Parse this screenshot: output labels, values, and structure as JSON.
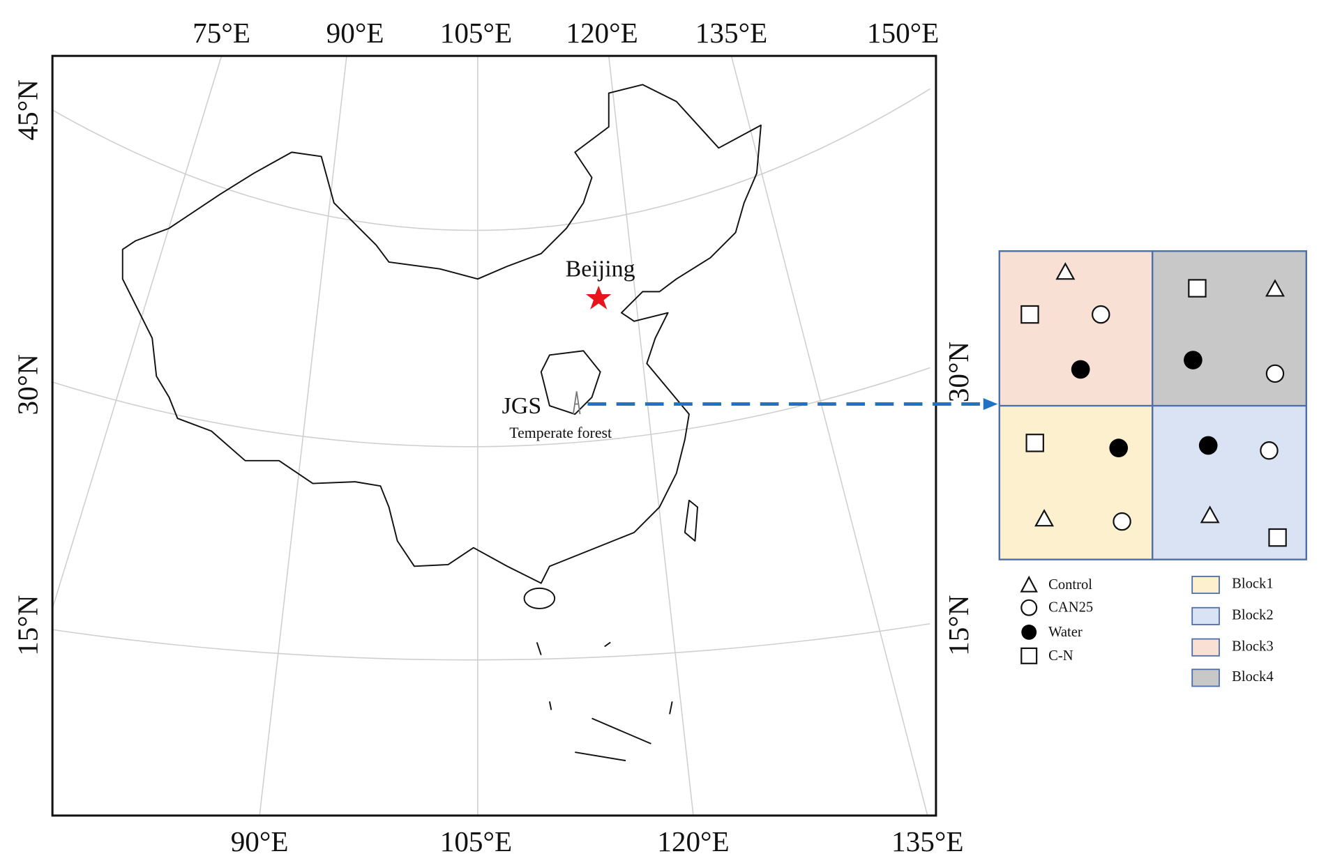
{
  "map": {
    "top_labels": [
      "75°E",
      "90°E",
      "105°E",
      "120°E",
      "135°E",
      "150°E"
    ],
    "bottom_labels": [
      "90°E",
      "105°E",
      "120°E",
      "135°E"
    ],
    "left_labels": [
      "45°N",
      "30°N",
      "15°N"
    ],
    "right_labels": [
      "30°N",
      "15°N"
    ],
    "places": {
      "beijing": "Beijing",
      "site": "JGS",
      "site_type": "Temperate forest"
    }
  },
  "legend": {
    "treatments": [
      "Control",
      "CAN25",
      "Water",
      "C-N"
    ],
    "blocks": [
      {
        "label": "Block1",
        "color": "#fdf0cf"
      },
      {
        "label": "Block2",
        "color": "#dae3f3"
      },
      {
        "label": "Block3",
        "color": "#f8e0d4"
      },
      {
        "label": "Block4",
        "color": "#c9c8c8"
      }
    ]
  }
}
